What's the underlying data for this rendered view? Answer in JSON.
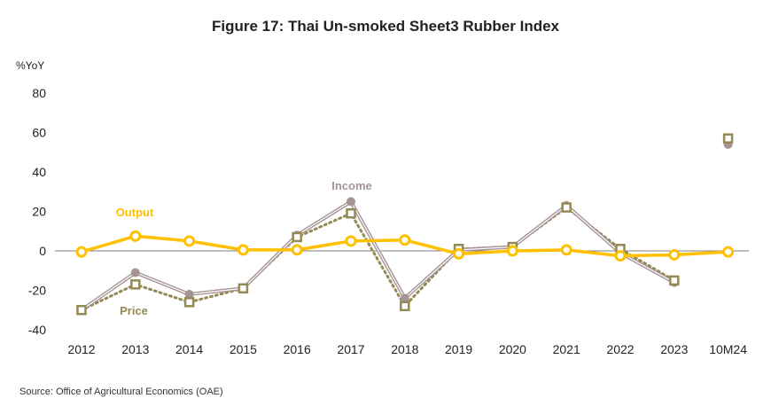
{
  "source": "Source: Office of Agricultural Economics (OAE)",
  "chart_data": {
    "type": "line",
    "title": "Figure 17: Thai Un-smoked Sheet3 Rubber Index",
    "ylabel": "%YoY",
    "ylim": [
      -40,
      80
    ],
    "yticks": [
      80,
      60,
      40,
      20,
      0,
      -20,
      -40
    ],
    "categories": [
      "2012",
      "2013",
      "2014",
      "2015",
      "2016",
      "2017",
      "2018",
      "2019",
      "2020",
      "2021",
      "2022",
      "2023",
      "10M24"
    ],
    "series": [
      {
        "name": "Output",
        "color": "#FFC000",
        "values": [
          -0.5,
          7.5,
          5,
          0.5,
          0.5,
          5,
          5.5,
          -1.5,
          0,
          0.5,
          -2.5,
          -2,
          -0.5
        ]
      },
      {
        "name": "Income",
        "color": "#A69394",
        "values": [
          -30,
          -11,
          -22,
          -19,
          8,
          25,
          -24,
          0.5,
          2,
          23,
          -1,
          -16,
          54
        ]
      },
      {
        "name": "Price",
        "color": "#948A54",
        "values": [
          -30,
          -17,
          -26,
          -19,
          7,
          19,
          -28,
          1,
          2,
          22,
          1,
          -15,
          57
        ]
      }
    ]
  }
}
